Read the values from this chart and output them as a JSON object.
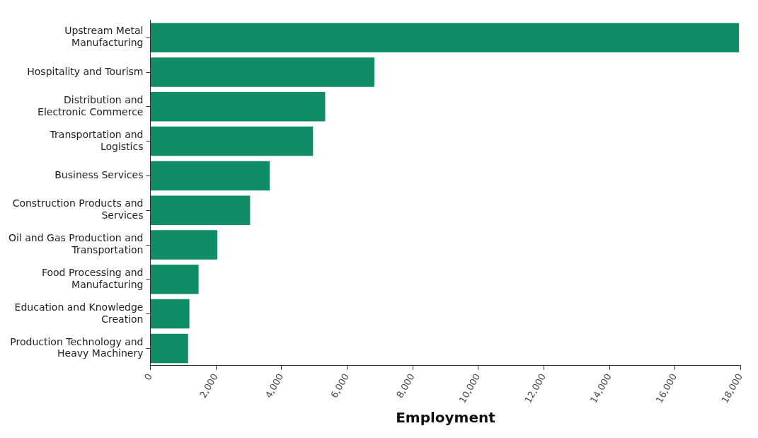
{
  "chart_data": {
    "type": "bar",
    "orientation": "horizontal",
    "xlabel": "Employment",
    "categories": [
      "Upstream Metal Manufacturing",
      "Hospitality and Tourism",
      "Distribution and Electronic Commerce",
      "Transportation and Logistics",
      "Business Services",
      "Construction Products and Services",
      "Oil and Gas Production and Transportation",
      "Food Processing and Manufacturing",
      "Education and Knowledge Creation",
      "Production Technology and Heavy Machinery"
    ],
    "values": [
      17950,
      6830,
      5330,
      4960,
      3640,
      3040,
      2040,
      1470,
      1190,
      1150
    ],
    "color": "#108c68",
    "xlim": [
      0,
      18000
    ],
    "xticks": [
      {
        "value": 0,
        "label": "0"
      },
      {
        "value": 2000,
        "label": "2,000"
      },
      {
        "value": 4000,
        "label": "4,000"
      },
      {
        "value": 6000,
        "label": "6,000"
      },
      {
        "value": 8000,
        "label": "8,000"
      },
      {
        "value": 10000,
        "label": "10,000"
      },
      {
        "value": 12000,
        "label": "12,000"
      },
      {
        "value": 14000,
        "label": "14,000"
      },
      {
        "value": 16000,
        "label": "16,000"
      },
      {
        "value": 18000,
        "label": "18,000"
      }
    ],
    "grid": false
  }
}
